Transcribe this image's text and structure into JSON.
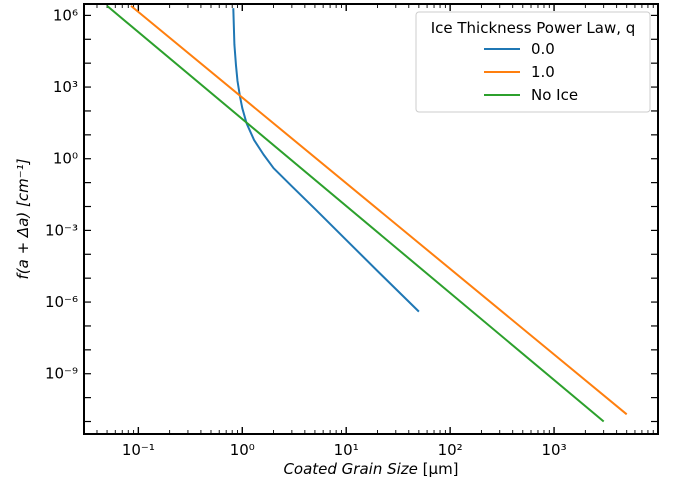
{
  "chart_data": {
    "type": "line",
    "title": "",
    "xlabel_italic": "Coated Grain Size",
    "xlabel_unit": " [μm]",
    "ylabel": "f(a + Δa) [cm⁻¹]",
    "xscale": "log",
    "yscale": "log",
    "xlim": [
      0.03,
      10000
    ],
    "ylim": [
      3e-12,
      3000000.0
    ],
    "grid": false,
    "legend": {
      "title": "Ice Thickness Power Law, q",
      "placement": "top-right"
    },
    "x_tick_labels": [
      "10⁻¹",
      "10⁰",
      "10¹",
      "10²",
      "10³"
    ],
    "y_tick_labels": [
      "10⁶",
      "10³",
      "10⁰",
      "10⁻³",
      "10⁻⁶",
      "10⁻⁹"
    ],
    "series": [
      {
        "name": "0.0",
        "color": "#1f77b4",
        "x": [
          0.82,
          0.84,
          0.87,
          0.9,
          0.95,
          1.0,
          1.1,
          1.3,
          1.6,
          2.0,
          3.0,
          5.0,
          10,
          20,
          50
        ],
        "y": [
          2000000,
          60000,
          8000,
          1800,
          400,
          130,
          30,
          6,
          1.5,
          0.4,
          0.07,
          0.008,
          0.0004,
          2e-05,
          4e-07
        ]
      },
      {
        "name": "1.0",
        "color": "#ff7f0e",
        "x": [
          0.085,
          5000
        ],
        "y": [
          2500000,
          2e-11
        ]
      },
      {
        "name": "No Ice",
        "color": "#2ca02c",
        "x": [
          0.05,
          3000
        ],
        "y": [
          2500000,
          1e-11
        ]
      }
    ]
  }
}
